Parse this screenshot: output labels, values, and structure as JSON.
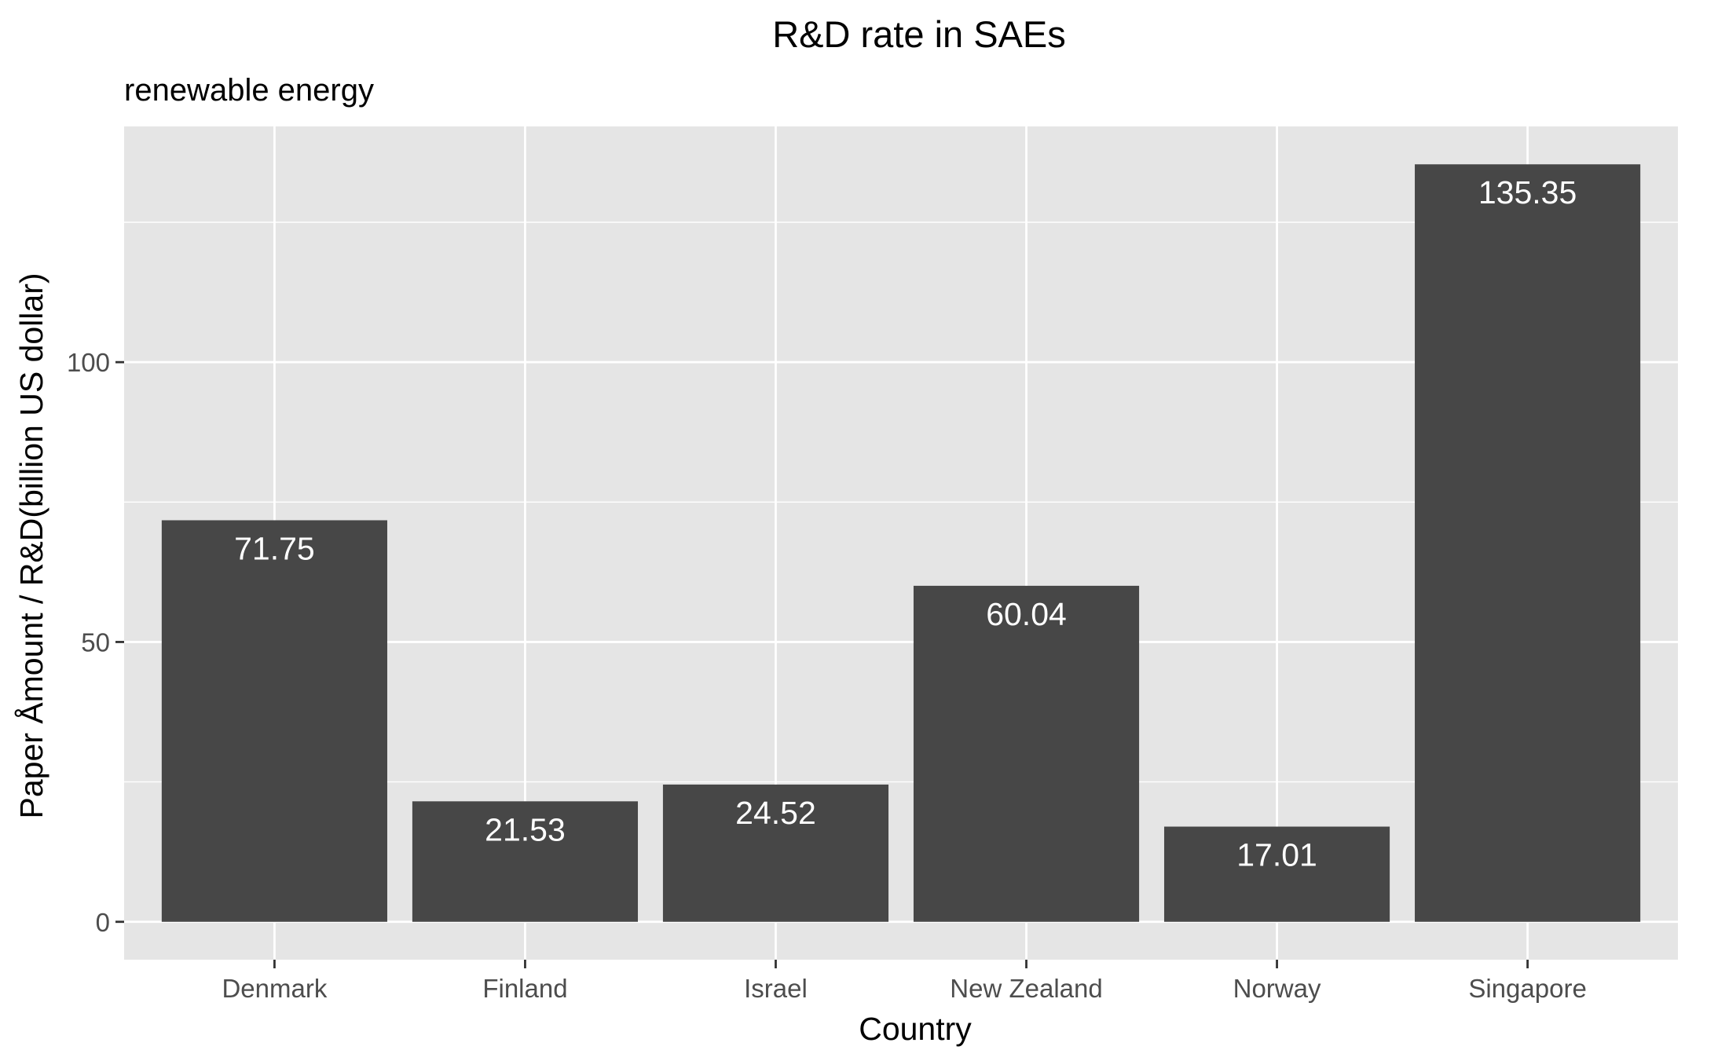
{
  "chart_data": {
    "type": "bar",
    "title": "R&D rate in SAEs",
    "subtitle": "renewable energy",
    "xlabel": "Country",
    "ylabel": "Paper Åmount / R&D(billion US dollar)",
    "categories": [
      "Denmark",
      "Finland",
      "Israel",
      "New Zealand",
      "Norway",
      "Singapore"
    ],
    "values": [
      71.75,
      21.53,
      24.52,
      60.04,
      17.01,
      135.35
    ],
    "data_labels": [
      "71.75",
      "21.53",
      "24.52",
      "60.04",
      "17.01",
      "135.35"
    ],
    "ylim": [
      -6.77,
      142.12
    ],
    "yticks": [
      0,
      50,
      100
    ],
    "ytick_labels": [
      "0",
      "50",
      "100"
    ],
    "grid": true,
    "legend": "none",
    "colors": {
      "bar": "#474747",
      "panel": "#e5e5e5",
      "grid": "#ffffff",
      "bar_label": "#ffffff",
      "tick_label": "#4d4d4d",
      "tick_mark": "#333333",
      "text": "#000000"
    }
  }
}
